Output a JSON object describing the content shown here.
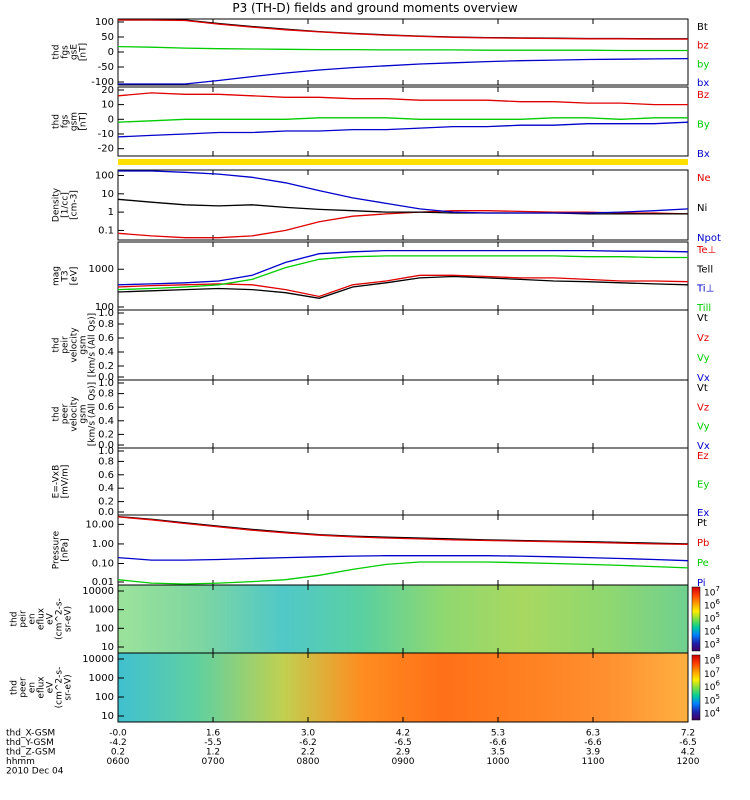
{
  "title": "P3 (TH-D) fields and ground moments overview",
  "colors": {
    "black": "#000000",
    "red": "#e00000",
    "green": "#00cc00",
    "blue": "#0000cc",
    "yellow": "#ffe000"
  },
  "chart_data": {
    "type": "line",
    "x_ticks": [
      "0600",
      "0700",
      "0800",
      "0900",
      "1000",
      "1100",
      "1200"
    ],
    "panels": [
      {
        "id": "fgs-gse",
        "ylabel": [
          "thd",
          "fgs",
          "gsE",
          "[nT]"
        ],
        "yticks": [
          "100",
          "50",
          "0",
          "-50",
          "-100"
        ],
        "ylim": [
          -110,
          110
        ],
        "scale": "linear",
        "series": [
          {
            "name": "Bt",
            "color": "black",
            "y": [
              130,
              120,
              108,
              95,
              85,
              76,
              68,
              62,
              57,
              53,
              50,
              48,
              47,
              46,
              45,
              45,
              44,
              44
            ]
          },
          {
            "name": "bz",
            "color": "red",
            "y": [
              130,
              118,
              105,
              93,
              83,
              74,
              67,
              61,
              56,
              52,
              49,
              47,
              46,
              45,
              44,
              44,
              43,
              43
            ]
          },
          {
            "name": "by",
            "color": "green",
            "y": [
              18,
              16,
              13,
              11,
              10,
              9,
              8,
              8,
              7,
              7,
              7,
              6,
              6,
              6,
              6,
              5,
              5,
              5
            ]
          },
          {
            "name": "bx",
            "color": "blue",
            "y": [
              -130,
              -122,
              -110,
              -95,
              -82,
              -70,
              -60,
              -52,
              -46,
              -40,
              -36,
              -32,
              -29,
              -27,
              -25,
              -24,
              -23,
              -22
            ]
          }
        ]
      },
      {
        "id": "fgs-gsm",
        "ylabel": [
          "thd",
          "fgs",
          "gsm",
          "[nT]"
        ],
        "yticks": [
          "20",
          "10",
          "0",
          "-10",
          "-20"
        ],
        "ylim": [
          -25,
          22
        ],
        "scale": "linear",
        "series": [
          {
            "name": "Bz",
            "color": "red",
            "y": [
              16,
              18,
              17,
              17,
              16,
              15,
              15,
              14,
              14,
              13,
              13,
              13,
              12,
              12,
              11,
              11,
              10,
              10
            ]
          },
          {
            "name": "By",
            "color": "green",
            "y": [
              -2,
              -1,
              0,
              0,
              0,
              0,
              1,
              1,
              1,
              0,
              0,
              0,
              0,
              1,
              1,
              0,
              1,
              1
            ]
          },
          {
            "name": "Bx",
            "color": "blue",
            "y": [
              -12,
              -11,
              -10,
              -9,
              -9,
              -8,
              -8,
              -7,
              -7,
              -6,
              -5,
              -5,
              -4,
              -4,
              -3,
              -3,
              -3,
              -2
            ]
          }
        ]
      },
      {
        "id": "density",
        "ylabel": [
          "Density",
          "[1/cc]",
          "[cm-3]"
        ],
        "yticks": [
          "100",
          "10",
          "1",
          "0.1"
        ],
        "ylim": [
          0.03,
          200
        ],
        "scale": "log",
        "series": [
          {
            "name": "Ne",
            "color": "red",
            "y": [
              0.07,
              0.05,
              0.04,
              0.04,
              0.05,
              0.1,
              0.3,
              0.6,
              0.8,
              1.0,
              1.2,
              1.2,
              1.1,
              1.0,
              1.0,
              0.9,
              0.9,
              0.8
            ]
          },
          {
            "name": "Ni",
            "color": "black",
            "y": [
              5,
              3.5,
              2.5,
              2.2,
              2.5,
              1.8,
              1.4,
              1.2,
              1.0,
              1.0,
              0.9,
              0.9,
              0.9,
              0.9,
              0.8,
              0.8,
              0.8,
              0.8
            ]
          },
          {
            "name": "Npot",
            "color": "blue",
            "y": [
              200,
              180,
              150,
              120,
              80,
              40,
              15,
              6,
              3,
              1.5,
              1.0,
              0.9,
              0.9,
              0.9,
              0.9,
              1.0,
              1.2,
              1.5
            ]
          }
        ]
      },
      {
        "id": "temperature",
        "ylabel": [
          "mag",
          "T3",
          "[eV]"
        ],
        "yticks": [
          "1000",
          "100"
        ],
        "ylim": [
          90,
          5000
        ],
        "scale": "log",
        "series": [
          {
            "name": "Te⊥",
            "color": "red",
            "y": [
              350,
              380,
              400,
              420,
              400,
              300,
              200,
              400,
              500,
              700,
              700,
              650,
              600,
              600,
              550,
              500,
              500,
              480
            ]
          },
          {
            "name": "Tell",
            "color": "black",
            "y": [
              260,
              280,
              300,
              320,
              300,
              250,
              180,
              350,
              450,
              600,
              650,
              600,
              550,
              500,
              480,
              450,
              420,
              400
            ]
          },
          {
            "name": "Ti⊥",
            "color": "blue",
            "y": [
              400,
              420,
              450,
              500,
              700,
              1500,
              2500,
              2800,
              3000,
              3000,
              3000,
              3000,
              3000,
              3000,
              3000,
              2900,
              2900,
              2800
            ]
          },
          {
            "name": "Till",
            "color": "green",
            "y": [
              300,
              320,
              350,
              400,
              550,
              1100,
              1800,
              2100,
              2200,
              2200,
              2200,
              2200,
              2200,
              2200,
              2100,
              2100,
              2000,
              2000
            ]
          }
        ]
      },
      {
        "id": "ion-velocity",
        "ylabel": [
          "thd",
          "peir",
          "velocity",
          "gsm",
          "[km/s (All Qs)]"
        ],
        "yticks": [
          "1.0",
          "0.8",
          "0.6",
          "0.4",
          "0.2",
          "0.0"
        ],
        "ylim": [
          0,
          1
        ],
        "scale": "linear",
        "series": [
          {
            "name": "Vt",
            "color": "black",
            "y": []
          },
          {
            "name": "Vz",
            "color": "red",
            "y": []
          },
          {
            "name": "Vy",
            "color": "green",
            "y": []
          },
          {
            "name": "Vx",
            "color": "blue",
            "y": []
          }
        ]
      },
      {
        "id": "electron-velocity",
        "ylabel": [
          "thd",
          "peer",
          "velocity",
          "gsm",
          "[km/s (All Qs)]"
        ],
        "yticks": [
          "1.0",
          "0.8",
          "0.6",
          "0.4",
          "0.2",
          "0.0"
        ],
        "ylim": [
          0,
          1
        ],
        "scale": "linear",
        "series": [
          {
            "name": "Vt",
            "color": "black",
            "y": []
          },
          {
            "name": "Vz",
            "color": "red",
            "y": []
          },
          {
            "name": "Vy",
            "color": "green",
            "y": []
          },
          {
            "name": "Vx",
            "color": "blue",
            "y": []
          }
        ]
      },
      {
        "id": "efield",
        "ylabel": [
          "E=-VxB",
          "[mV/m]"
        ],
        "yticks": [
          "1.0",
          "0.8",
          "0.6",
          "0.4",
          "0.2",
          "0.0"
        ],
        "ylim": [
          0,
          1
        ],
        "scale": "linear",
        "series": [
          {
            "name": "Ez",
            "color": "red",
            "y": []
          },
          {
            "name": "Ey",
            "color": "green",
            "y": []
          },
          {
            "name": "Ex",
            "color": "blue",
            "y": []
          }
        ]
      },
      {
        "id": "pressure",
        "ylabel": [
          "Pressure",
          "[nPa]"
        ],
        "yticks": [
          "10.00",
          "1.00",
          "0.10",
          "0.01"
        ],
        "ylim": [
          0.008,
          30
        ],
        "scale": "log",
        "series": [
          {
            "name": "Pt",
            "color": "black",
            "y": [
              25,
              18,
              12,
              8,
              5.5,
              4,
              3,
              2.5,
              2.2,
              2,
              1.8,
              1.6,
              1.5,
              1.4,
              1.3,
              1.2,
              1.1,
              1.0
            ]
          },
          {
            "name": "Pb",
            "color": "red",
            "y": [
              24,
              17,
              11,
              7.5,
              5,
              3.7,
              2.8,
              2.3,
              2.0,
              1.8,
              1.6,
              1.5,
              1.4,
              1.3,
              1.2,
              1.1,
              1.0,
              0.95
            ]
          },
          {
            "name": "Pe",
            "color": "green",
            "y": [
              0.015,
              0.01,
              0.009,
              0.01,
              0.012,
              0.015,
              0.025,
              0.05,
              0.09,
              0.12,
              0.12,
              0.12,
              0.11,
              0.1,
              0.09,
              0.08,
              0.07,
              0.06
            ]
          },
          {
            "name": "Pi",
            "color": "blue",
            "y": [
              0.2,
              0.15,
              0.15,
              0.16,
              0.18,
              0.2,
              0.22,
              0.24,
              0.25,
              0.25,
              0.25,
              0.25,
              0.24,
              0.22,
              0.2,
              0.18,
              0.16,
              0.14
            ]
          }
        ]
      }
    ],
    "spectrograms": [
      {
        "id": "ion-eflux",
        "ylabel": [
          "thd",
          "peir",
          "en",
          "eflux",
          "eV",
          "(cm^2-s-",
          "sr-eV)"
        ],
        "yticks": [
          "10000",
          "1000",
          "100",
          "10"
        ],
        "colorbar": [
          "10^7",
          "10^6",
          "10^5",
          "10^4",
          "10^3"
        ]
      },
      {
        "id": "electron-eflux",
        "ylabel": [
          "thd",
          "peer",
          "en",
          "eflux",
          "eV",
          "(cm^2-s-",
          "sr-eV)"
        ],
        "yticks": [
          "10000",
          "1000",
          "100",
          "10"
        ],
        "colorbar": [
          "10^8",
          "10^7",
          "10^6",
          "10^5",
          "10^4"
        ]
      }
    ],
    "ephemeris": [
      {
        "label": "thd_X-GSM",
        "values": [
          "-0.0",
          "1.6",
          "3.0",
          "4.2",
          "5.3",
          "6.3",
          "7.2"
        ]
      },
      {
        "label": "thd_Y-GSM",
        "values": [
          "-4.2",
          "-5.5",
          "-6.2",
          "-6.5",
          "-6.6",
          "-6.6",
          "-6.5"
        ]
      },
      {
        "label": "thd_Z-GSM",
        "values": [
          "0.2",
          "1.2",
          "2.2",
          "2.9",
          "3.5",
          "3.9",
          "4.2"
        ]
      },
      {
        "label": "hhmm",
        "values": [
          "0600",
          "0700",
          "0800",
          "0900",
          "1000",
          "1100",
          "1200"
        ]
      }
    ],
    "date": "2010 Dec 04"
  }
}
